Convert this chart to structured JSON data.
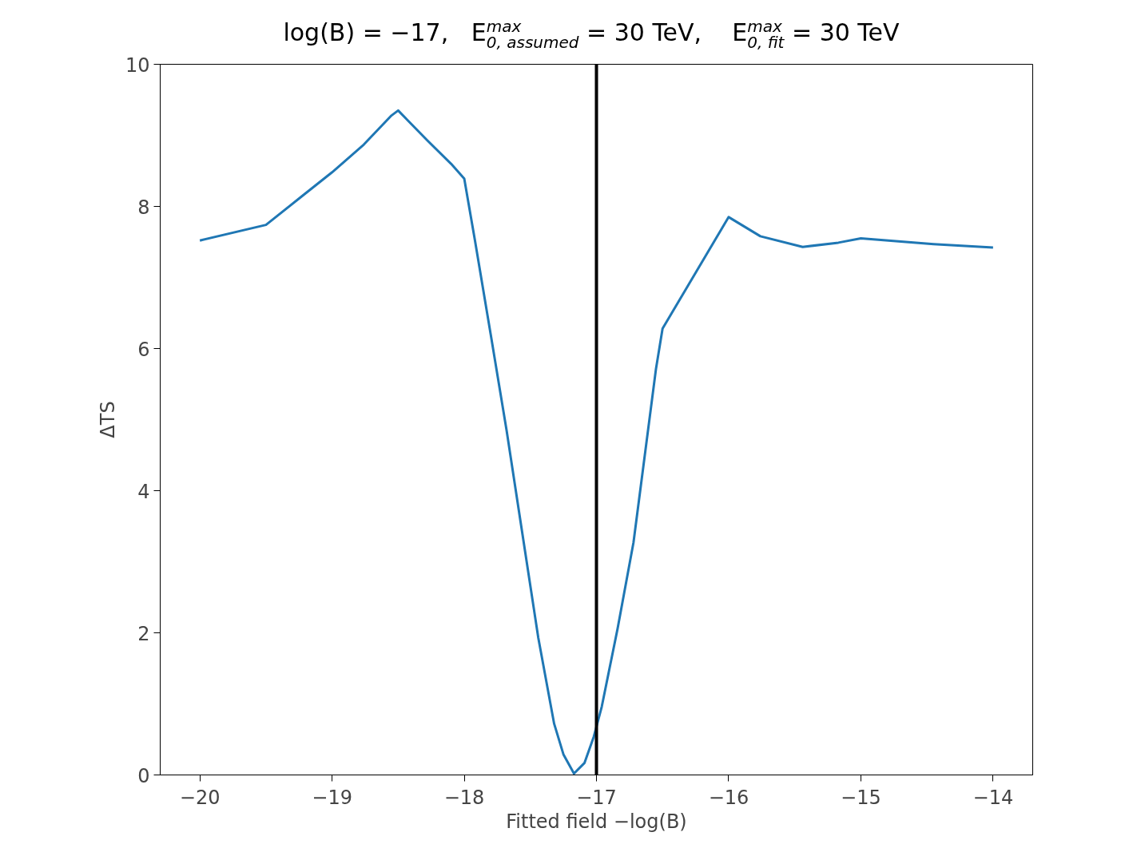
{
  "chart_data": {
    "type": "line",
    "title": "log(B) = −17,   E$_{0, assumed}$$^{max}$ = 30 TeV,    E$_{0, fit}$$^{max}$ = 30 TeV",
    "xlabel": "Fitted field −log(B)",
    "ylabel": "ΔTS",
    "series": [
      {
        "color": "#1f77b4",
        "x": [
          -20,
          -19.5,
          -19.23,
          -19.0,
          -18.76,
          -18.55,
          -18.5,
          -18.28,
          -18.1,
          -18.0,
          -17.92,
          -17.8,
          -17.68,
          -17.56,
          -17.44,
          -17.32,
          -17.25,
          -17.17,
          -17.09,
          -17.02,
          -16.96,
          -16.84,
          -16.72,
          -16.55,
          -16.5,
          -16.0,
          -15.76,
          -15.44,
          -15.17,
          -15.0,
          -14.45,
          -14.0
        ],
        "values": [
          7.52,
          7.74,
          8.14,
          8.48,
          8.87,
          9.28,
          9.35,
          8.93,
          8.6,
          8.39,
          7.53,
          6.2,
          4.85,
          3.39,
          1.93,
          0.72,
          0.29,
          0.02,
          0.17,
          0.54,
          0.96,
          2.06,
          3.27,
          5.71,
          6.28,
          7.85,
          7.58,
          7.43,
          7.49,
          7.55,
          7.47,
          7.42
        ]
      }
    ],
    "ref_lines": [
      {
        "axis": "x",
        "value": -17,
        "color": "#000000"
      }
    ],
    "xlim": [
      -20.3,
      -13.7
    ],
    "ylim": [
      0,
      10
    ],
    "xticks": [
      {
        "value": -20,
        "label": "−20"
      },
      {
        "value": -19,
        "label": "−19"
      },
      {
        "value": -18,
        "label": "−18"
      },
      {
        "value": -17,
        "label": "−17"
      },
      {
        "value": -16,
        "label": "−16"
      },
      {
        "value": -15,
        "label": "−15"
      },
      {
        "value": -14,
        "label": "−14"
      }
    ],
    "yticks": [
      0,
      2,
      4,
      6,
      8,
      10
    ],
    "grid": false,
    "marker": "none",
    "line_style": "solid"
  }
}
